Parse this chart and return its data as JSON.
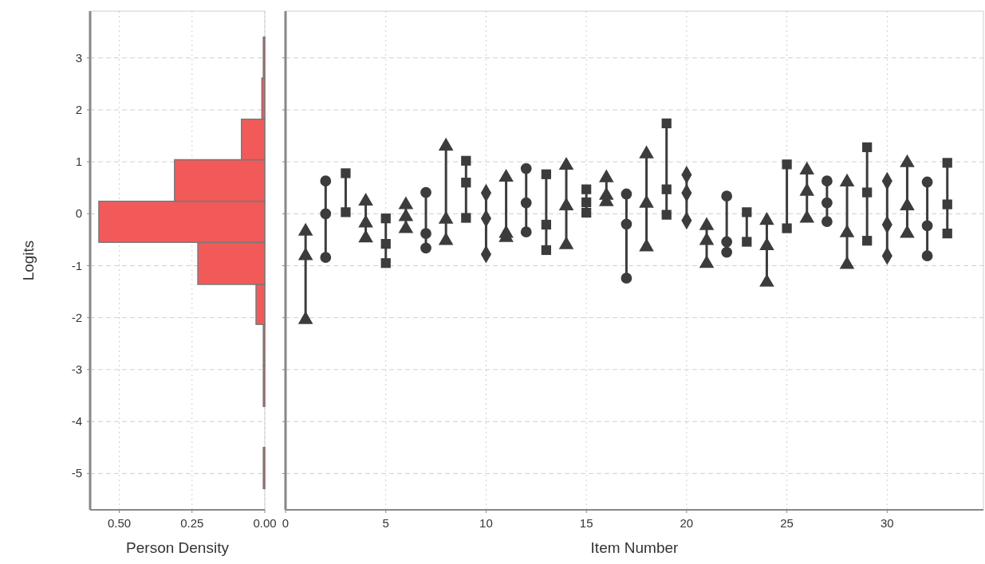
{
  "chart_data": [
    {
      "type": "histogram",
      "orientation": "horizontal",
      "xlabel": "Person Density",
      "ylabel": "Logits",
      "bins": [
        -5.29,
        -4.5,
        -3.71,
        -2.92,
        -2.13,
        -1.36,
        -0.55,
        0.24,
        1.04,
        1.82,
        2.61,
        3.4
      ],
      "values": [
        0.005,
        0,
        0.005,
        0.005,
        0.03,
        0.23,
        0.57,
        0.31,
        0.08,
        0.01,
        0.005
      ],
      "color": "#f25a5a",
      "xlim": [
        0.6,
        0
      ],
      "xticks": [
        {
          "value": 0.5,
          "label": "0.50"
        },
        {
          "value": 0.25,
          "label": "0.25"
        },
        {
          "value": 0,
          "label": "0.00"
        }
      ],
      "ylim": [
        -5.7,
        3.9
      ],
      "yticks": [
        -5,
        -4,
        -3,
        -2,
        -1,
        0,
        1,
        2,
        3
      ],
      "grid": true
    },
    {
      "type": "line",
      "xlabel": "Item Number",
      "xlim": [
        0,
        34.8
      ],
      "xticks": [
        0,
        5,
        10,
        15,
        20,
        25,
        30
      ],
      "ylim": [
        -5.7,
        3.9
      ],
      "yticks": [
        -5,
        -4,
        -3,
        -2,
        -1,
        0,
        1,
        2,
        3
      ],
      "grid": true,
      "tick_labels": "x",
      "series": [
        {
          "color": "#3c3c3c",
          "marker": "triangle",
          "x": [
            1,
            1,
            1
          ],
          "values": [
            -2.04,
            -0.81,
            -0.34
          ]
        },
        {
          "color": "#3c3c3c",
          "marker": "circle",
          "x": [
            2,
            2,
            2
          ],
          "values": [
            -0.84,
            0,
            0.63
          ]
        },
        {
          "color": "#3c3c3c",
          "marker": "square",
          "x": [
            3,
            3
          ],
          "values": [
            0.03,
            0.78
          ]
        },
        {
          "color": "#3c3c3c",
          "marker": "triangle",
          "x": [
            4,
            4,
            4
          ],
          "values": [
            -0.47,
            -0.18,
            0.24
          ]
        },
        {
          "color": "#3c3c3c",
          "marker": "square",
          "x": [
            5,
            5,
            5
          ],
          "values": [
            -0.95,
            -0.58,
            -0.09
          ]
        },
        {
          "color": "#3c3c3c",
          "marker": "triangle",
          "x": [
            6,
            6,
            6
          ],
          "values": [
            -0.29,
            -0.06,
            0.17
          ]
        },
        {
          "color": "#3c3c3c",
          "marker": "circle",
          "x": [
            7,
            7,
            7
          ],
          "values": [
            -0.66,
            -0.38,
            0.41
          ]
        },
        {
          "color": "#3c3c3c",
          "marker": "triangle",
          "x": [
            8,
            8,
            8
          ],
          "values": [
            -0.52,
            -0.11,
            1.3
          ]
        },
        {
          "color": "#3c3c3c",
          "marker": "square",
          "x": [
            9,
            9,
            9
          ],
          "values": [
            -0.08,
            0.6,
            1.02
          ]
        },
        {
          "color": "#3c3c3c",
          "marker": "diamond",
          "x": [
            10,
            10,
            10
          ],
          "values": [
            -0.78,
            -0.09,
            0.4
          ]
        },
        {
          "color": "#3c3c3c",
          "marker": "triangle",
          "x": [
            11,
            11,
            11
          ],
          "values": [
            -0.46,
            -0.38,
            0.7
          ]
        },
        {
          "color": "#3c3c3c",
          "marker": "circle",
          "x": [
            12,
            12,
            12
          ],
          "values": [
            -0.35,
            0.21,
            0.87
          ]
        },
        {
          "color": "#3c3c3c",
          "marker": "square",
          "x": [
            13,
            13,
            13
          ],
          "values": [
            -0.7,
            -0.21,
            0.76
          ]
        },
        {
          "color": "#3c3c3c",
          "marker": "triangle",
          "x": [
            14,
            14,
            14
          ],
          "values": [
            -0.6,
            0.15,
            0.93
          ]
        },
        {
          "color": "#3c3c3c",
          "marker": "square",
          "x": [
            15,
            15,
            15
          ],
          "values": [
            0.02,
            0.22,
            0.47
          ]
        },
        {
          "color": "#3c3c3c",
          "marker": "triangle",
          "x": [
            16,
            16,
            16
          ],
          "values": [
            0.23,
            0.35,
            0.69
          ]
        },
        {
          "color": "#3c3c3c",
          "marker": "circle",
          "x": [
            17,
            17,
            17
          ],
          "values": [
            -1.24,
            -0.2,
            0.38
          ]
        },
        {
          "color": "#3c3c3c",
          "marker": "triangle",
          "x": [
            18,
            18,
            18
          ],
          "values": [
            -0.64,
            0.2,
            1.15
          ]
        },
        {
          "color": "#3c3c3c",
          "marker": "square",
          "x": [
            19,
            19,
            19
          ],
          "values": [
            -0.02,
            0.47,
            1.74
          ]
        },
        {
          "color": "#3c3c3c",
          "marker": "diamond",
          "x": [
            20,
            20,
            20
          ],
          "values": [
            -0.13,
            0.4,
            0.75
          ]
        },
        {
          "color": "#3c3c3c",
          "marker": "triangle",
          "x": [
            21,
            21,
            21
          ],
          "values": [
            -0.96,
            -0.52,
            -0.23
          ]
        },
        {
          "color": "#3c3c3c",
          "marker": "circle",
          "x": [
            22,
            22,
            22
          ],
          "values": [
            -0.74,
            -0.54,
            0.34
          ]
        },
        {
          "color": "#3c3c3c",
          "marker": "square",
          "x": [
            23,
            23
          ],
          "values": [
            -0.54,
            0.03
          ]
        },
        {
          "color": "#3c3c3c",
          "marker": "triangle",
          "x": [
            24,
            24,
            24
          ],
          "values": [
            -1.32,
            -0.62,
            -0.13
          ]
        },
        {
          "color": "#3c3c3c",
          "marker": "square",
          "x": [
            25,
            25
          ],
          "values": [
            -0.28,
            0.95
          ]
        },
        {
          "color": "#3c3c3c",
          "marker": "triangle",
          "x": [
            26,
            26,
            26
          ],
          "values": [
            -0.09,
            0.43,
            0.84
          ]
        },
        {
          "color": "#3c3c3c",
          "marker": "circle",
          "x": [
            27,
            27,
            27
          ],
          "values": [
            -0.15,
            0.21,
            0.63
          ]
        },
        {
          "color": "#3c3c3c",
          "marker": "triangle",
          "x": [
            28,
            28,
            28
          ],
          "values": [
            -0.98,
            -0.37,
            0.61
          ]
        },
        {
          "color": "#3c3c3c",
          "marker": "square",
          "x": [
            29,
            29,
            29
          ],
          "values": [
            -0.52,
            0.41,
            1.28
          ]
        },
        {
          "color": "#3c3c3c",
          "marker": "diamond",
          "x": [
            30,
            30,
            30
          ],
          "values": [
            -0.81,
            -0.21,
            0.63
          ]
        },
        {
          "color": "#3c3c3c",
          "marker": "triangle",
          "x": [
            31,
            31,
            31
          ],
          "values": [
            -0.38,
            0.15,
            0.98
          ]
        },
        {
          "color": "#3c3c3c",
          "marker": "circle",
          "x": [
            32,
            32,
            32
          ],
          "values": [
            -0.81,
            -0.23,
            0.61
          ]
        },
        {
          "color": "#3c3c3c",
          "marker": "square",
          "x": [
            33,
            33,
            33
          ],
          "values": [
            -0.38,
            0.18,
            0.98
          ]
        }
      ]
    }
  ]
}
